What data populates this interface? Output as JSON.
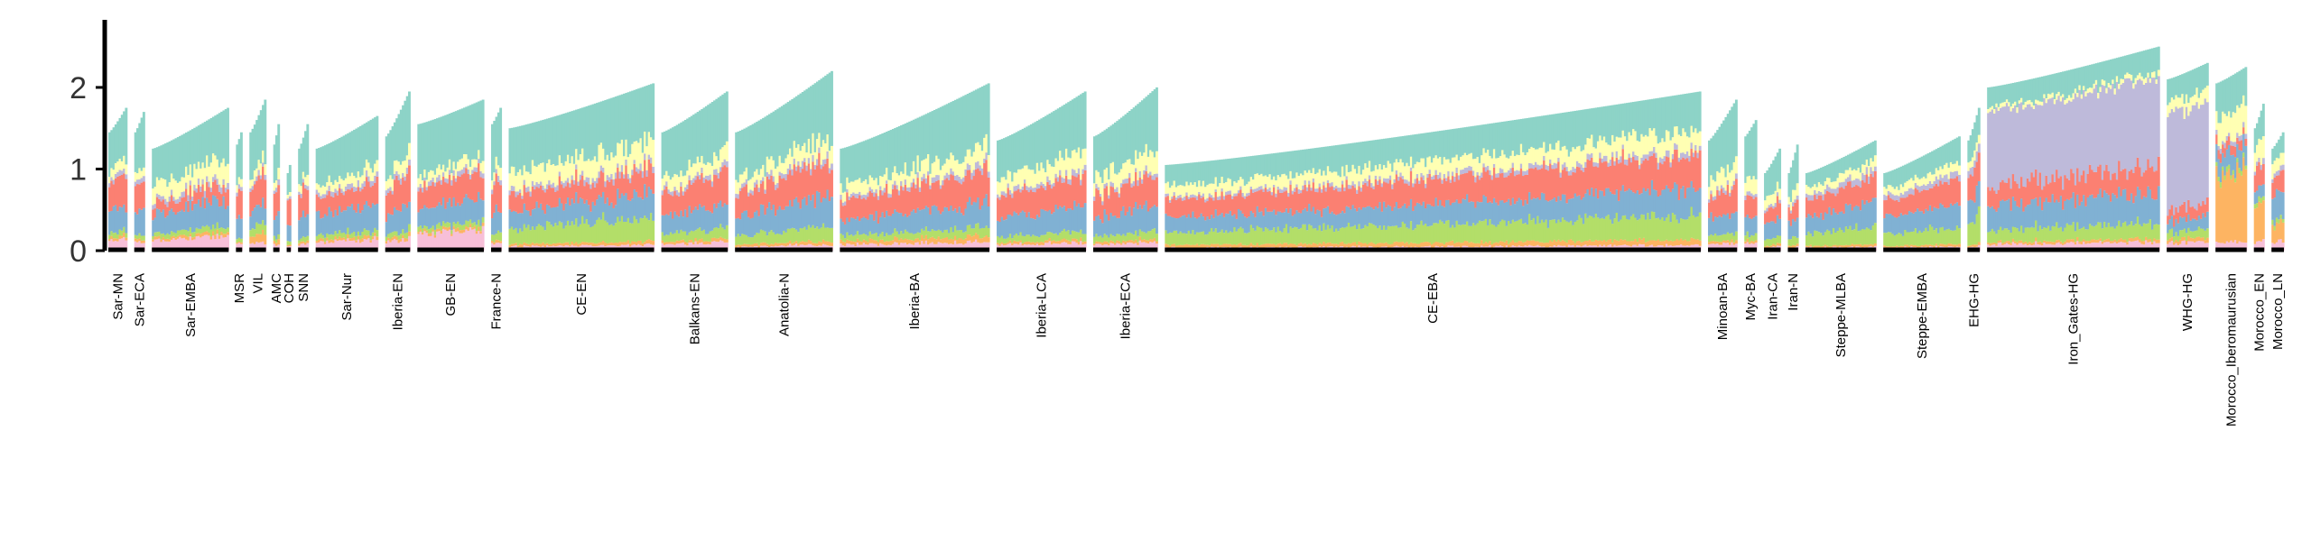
{
  "chart_data": {
    "type": "bar",
    "stacked": true,
    "title": "",
    "xlabel": "",
    "ylabel": "",
    "ylim": [
      0,
      2.85
    ],
    "yticks": [
      {
        "value": 0,
        "label": "0"
      },
      {
        "value": 1,
        "label": "1"
      },
      {
        "value": 2,
        "label": "2"
      }
    ],
    "grid": false,
    "legend": "none",
    "component_colors": [
      "#f7bfd8",
      "#fdb462",
      "#b3de69",
      "#80b1d3",
      "#fb8072",
      "#bebada",
      "#ffffb3",
      "#8dd3c7"
    ],
    "groups": [
      {
        "label": "Sar-MN",
        "n": 9,
        "start": 1.45,
        "end": 1.75,
        "comp": [
          0.12,
          0.03,
          0.05,
          0.25,
          0.3,
          0.05,
          0.1,
          0.5
        ]
      },
      {
        "label": "Sar-ECA",
        "n": 5,
        "start": 1.45,
        "end": 1.7,
        "comp": [
          0.1,
          0.03,
          0.05,
          0.25,
          0.3,
          0.05,
          0.1,
          0.5
        ]
      },
      {
        "label": "Sar-EMBA",
        "n": 37,
        "start": 1.25,
        "end": 1.75,
        "comp": [
          0.12,
          0.03,
          0.05,
          0.22,
          0.12,
          0.05,
          0.18,
          0.4
        ]
      },
      {
        "label": "MSR",
        "n": 3,
        "start": 1.3,
        "end": 1.45,
        "comp": [
          0.1,
          0.02,
          0.05,
          0.25,
          0.3,
          0.05,
          0.1,
          0.5
        ]
      },
      {
        "label": "VIL",
        "n": 8,
        "start": 1.45,
        "end": 1.85,
        "comp": [
          0.08,
          0.1,
          0.1,
          0.2,
          0.3,
          0.05,
          0.1,
          0.55
        ]
      },
      {
        "label": "AMC",
        "n": 3,
        "start": 1.3,
        "end": 1.55,
        "comp": [
          0.08,
          0.05,
          0.05,
          0.25,
          0.3,
          0.05,
          0.1,
          0.5
        ]
      },
      {
        "label": "COH",
        "n": 2,
        "start": 0.95,
        "end": 1.05,
        "comp": [
          0.05,
          0.02,
          0.05,
          0.2,
          0.3,
          0.03,
          0.05,
          0.3
        ]
      },
      {
        "label": "SNN",
        "n": 5,
        "start": 1.25,
        "end": 1.55,
        "comp": [
          0.08,
          0.03,
          0.05,
          0.25,
          0.3,
          0.05,
          0.1,
          0.5
        ]
      },
      {
        "label": "Sar-Nur",
        "n": 30,
        "start": 1.25,
        "end": 1.65,
        "comp": [
          0.1,
          0.03,
          0.05,
          0.25,
          0.2,
          0.05,
          0.1,
          0.45
        ]
      },
      {
        "label": "Iberia-EN",
        "n": 12,
        "start": 1.4,
        "end": 1.95,
        "comp": [
          0.1,
          0.03,
          0.05,
          0.22,
          0.28,
          0.05,
          0.12,
          0.5
        ]
      },
      {
        "label": "GB-EN",
        "n": 32,
        "start": 1.55,
        "end": 1.85,
        "comp": [
          0.2,
          0.03,
          0.05,
          0.22,
          0.25,
          0.05,
          0.1,
          0.55
        ]
      },
      {
        "label": "France-N",
        "n": 5,
        "start": 1.55,
        "end": 1.75,
        "comp": [
          0.08,
          0.03,
          0.08,
          0.25,
          0.28,
          0.05,
          0.12,
          0.55
        ]
      },
      {
        "label": "CE-EN",
        "n": 70,
        "start": 1.5,
        "end": 2.05,
        "comp": [
          0.05,
          0.03,
          0.2,
          0.22,
          0.2,
          0.05,
          0.2,
          0.5
        ]
      },
      {
        "label": "Balkans-EN",
        "n": 32,
        "start": 1.45,
        "end": 1.95,
        "comp": [
          0.08,
          0.03,
          0.1,
          0.22,
          0.28,
          0.05,
          0.15,
          0.55
        ]
      },
      {
        "label": "Anatolia-N",
        "n": 47,
        "start": 1.45,
        "end": 2.2,
        "comp": [
          0.05,
          0.03,
          0.12,
          0.25,
          0.3,
          0.05,
          0.15,
          0.55
        ]
      },
      {
        "label": "Iberia-BA",
        "n": 72,
        "start": 1.25,
        "end": 2.05,
        "comp": [
          0.08,
          0.05,
          0.08,
          0.22,
          0.28,
          0.05,
          0.15,
          0.55
        ]
      },
      {
        "label": "Iberia-LCA",
        "n": 43,
        "start": 1.35,
        "end": 1.95,
        "comp": [
          0.08,
          0.03,
          0.08,
          0.25,
          0.3,
          0.05,
          0.2,
          0.55
        ]
      },
      {
        "label": "Iberia-ECA",
        "n": 31,
        "start": 1.4,
        "end": 2.0,
        "comp": [
          0.08,
          0.03,
          0.08,
          0.25,
          0.3,
          0.05,
          0.2,
          0.55
        ]
      },
      {
        "label": "CE-EBA",
        "n": 258,
        "start": 1.05,
        "end": 1.95,
        "comp": [
          0.05,
          0.05,
          0.22,
          0.25,
          0.3,
          0.05,
          0.18,
          0.35
        ]
      },
      {
        "label": "Minoan-BA",
        "n": 14,
        "start": 1.35,
        "end": 1.85,
        "comp": [
          0.08,
          0.03,
          0.08,
          0.22,
          0.28,
          0.05,
          0.2,
          0.6
        ]
      },
      {
        "label": "Myc-BA",
        "n": 6,
        "start": 1.4,
        "end": 1.6,
        "comp": [
          0.08,
          0.03,
          0.08,
          0.22,
          0.28,
          0.05,
          0.2,
          0.6
        ]
      },
      {
        "label": "Iran-CA",
        "n": 8,
        "start": 0.95,
        "end": 1.25,
        "comp": [
          0.05,
          0.03,
          0.1,
          0.25,
          0.2,
          0.05,
          0.15,
          0.45
        ]
      },
      {
        "label": "Iran-N",
        "n": 5,
        "start": 0.95,
        "end": 1.3,
        "comp": [
          0.05,
          0.03,
          0.1,
          0.25,
          0.2,
          0.05,
          0.15,
          0.45
        ]
      },
      {
        "label": "Steppe-MLBA",
        "n": 34,
        "start": 0.95,
        "end": 1.35,
        "comp": [
          0.05,
          0.03,
          0.22,
          0.3,
          0.3,
          0.08,
          0.12,
          0.25
        ]
      },
      {
        "label": "Steppe-EMBA",
        "n": 37,
        "start": 0.95,
        "end": 1.4,
        "comp": [
          0.05,
          0.03,
          0.22,
          0.3,
          0.3,
          0.08,
          0.12,
          0.3
        ]
      },
      {
        "label": "EHG-HG",
        "n": 6,
        "start": 1.35,
        "end": 1.75,
        "comp": [
          0.05,
          0.03,
          0.3,
          0.3,
          0.35,
          0.1,
          0.1,
          0.35
        ]
      },
      {
        "label": "Iron_Gates-HG",
        "n": 83,
        "start": 2.0,
        "end": 2.5,
        "comp": [
          0.08,
          0.03,
          0.15,
          0.3,
          0.25,
          0.9,
          0.05,
          0.25
        ]
      },
      {
        "label": "WHG-HG",
        "n": 20,
        "start": 2.1,
        "end": 2.3,
        "comp": [
          0.1,
          0.05,
          0.1,
          0.15,
          0.15,
          1.2,
          0.15,
          0.3
        ]
      },
      {
        "label": "Morocco_Iberomaurusian",
        "n": 15,
        "start": 2.05,
        "end": 2.25,
        "comp": [
          0.1,
          0.8,
          0.05,
          0.2,
          0.1,
          0.05,
          0.3,
          0.4
        ]
      },
      {
        "label": "Morocco_EN",
        "n": 5,
        "start": 1.5,
        "end": 1.8,
        "comp": [
          0.1,
          0.4,
          0.05,
          0.15,
          0.25,
          0.05,
          0.25,
          0.3
        ]
      },
      {
        "label": "Morocco_LN",
        "n": 6,
        "start": 1.25,
        "end": 1.45,
        "comp": [
          0.1,
          0.2,
          0.05,
          0.3,
          0.2,
          0.05,
          0.15,
          0.2
        ]
      }
    ]
  }
}
